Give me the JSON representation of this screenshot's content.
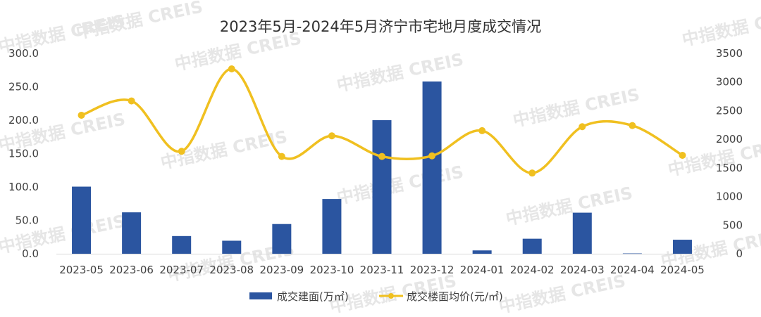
{
  "chart_data": {
    "type": "bar+line",
    "title": "2023年5月-2024年5月济宁市宅地月度成交情况",
    "categories": [
      "2023-05",
      "2023-06",
      "2023-07",
      "2023-08",
      "2023-09",
      "2023-10",
      "2023-11",
      "2023-12",
      "2024-01",
      "2024-02",
      "2024-03",
      "2024-04",
      "2024-05"
    ],
    "series": [
      {
        "name": "成交建面(万㎡)",
        "type": "bar",
        "axis": "left",
        "color": "#2b55a0",
        "values": [
          100.5,
          62.0,
          26.5,
          19.5,
          44.5,
          82.0,
          200.0,
          258.0,
          5.0,
          22.5,
          61.5,
          0.5,
          21.0
        ]
      },
      {
        "name": "成交楼面均价(元/㎡)",
        "type": "line",
        "axis": "right",
        "color": "#f0c020",
        "values": [
          2420,
          2670,
          1790,
          3230,
          1700,
          2060,
          1700,
          1710,
          2150,
          1410,
          2220,
          2240,
          1720
        ]
      }
    ],
    "y_left": {
      "ylim": [
        0,
        300
      ],
      "ticks": [
        "0.0",
        "50.0",
        "100.0",
        "150.0",
        "200.0",
        "250.0",
        "300.0"
      ]
    },
    "y_right": {
      "ylim": [
        0,
        3500
      ],
      "ticks": [
        "0",
        "500",
        "1000",
        "1500",
        "2000",
        "2500",
        "3000",
        "3500"
      ]
    },
    "legend": {
      "position": "bottom"
    },
    "grid": false,
    "watermark": "中指数据 CREIS"
  }
}
